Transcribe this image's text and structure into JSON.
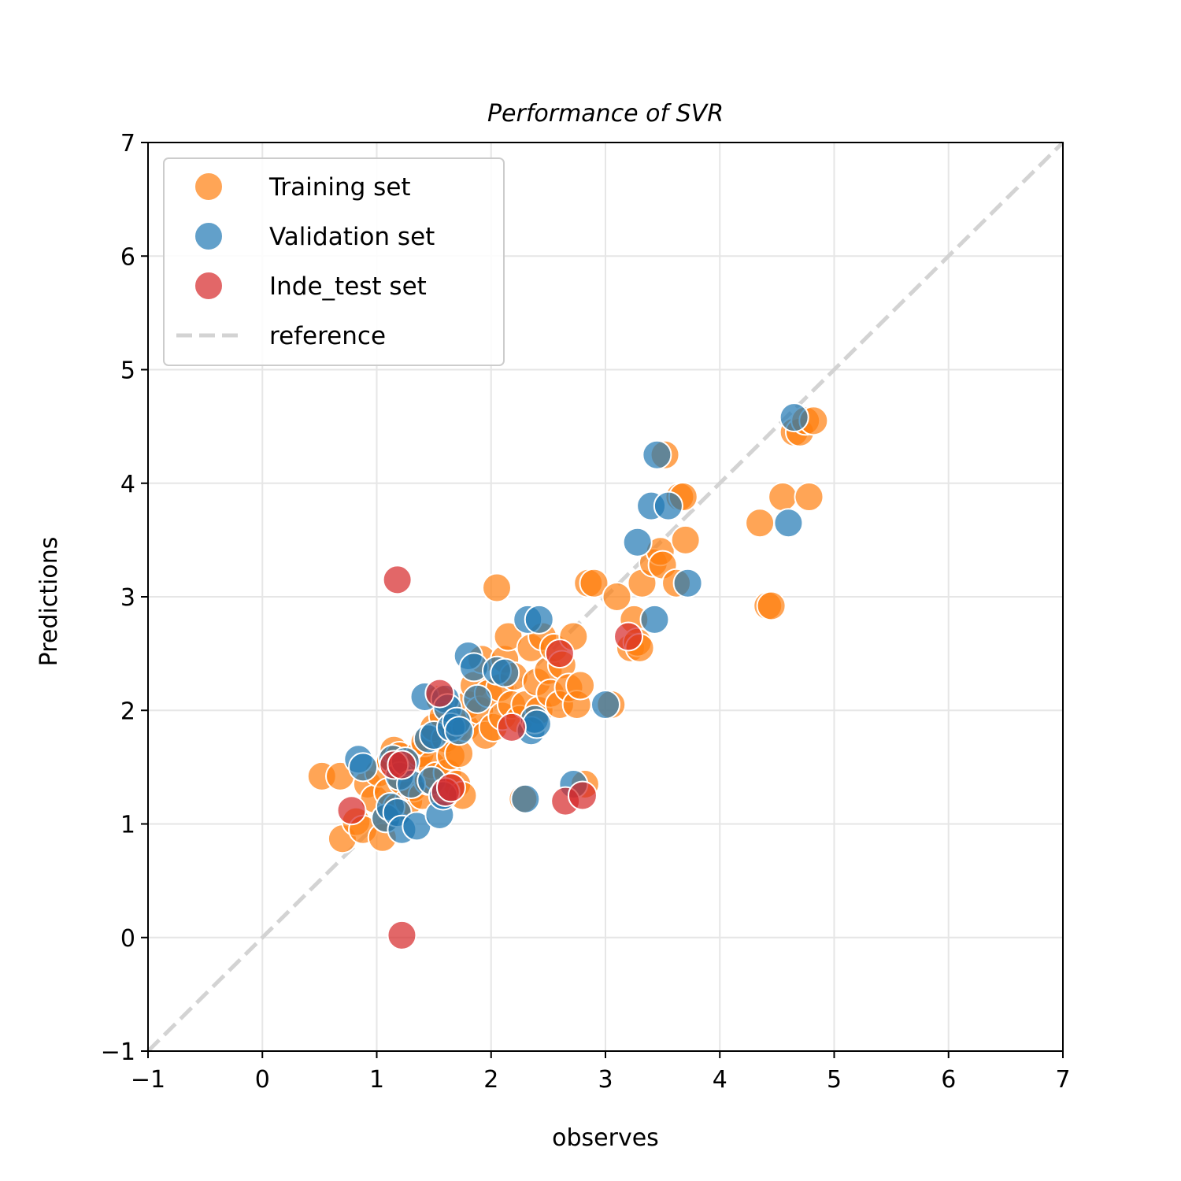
{
  "chart_data": {
    "type": "scatter",
    "title": "Performance of SVR",
    "xlabel": "observes",
    "ylabel": "Predictions",
    "xlim": [
      -1,
      7
    ],
    "ylim": [
      -1,
      7
    ],
    "xticks": [
      -1,
      0,
      1,
      2,
      3,
      4,
      5,
      6,
      7
    ],
    "yticks": [
      -1,
      0,
      1,
      2,
      3,
      4,
      5,
      6,
      7
    ],
    "xtick_labels": [
      "−1",
      "0",
      "1",
      "2",
      "3",
      "4",
      "5",
      "6",
      "7"
    ],
    "ytick_labels": [
      "−1",
      "0",
      "1",
      "2",
      "3",
      "4",
      "5",
      "6",
      "7"
    ],
    "grid": true,
    "legend_position": "top-left",
    "series": [
      {
        "name": "Training set",
        "color": "#ff7f0e",
        "points": [
          [
            0.52,
            1.42
          ],
          [
            0.68,
            1.42
          ],
          [
            0.7,
            0.87
          ],
          [
            0.82,
            1.02
          ],
          [
            0.88,
            0.95
          ],
          [
            0.92,
            1.35
          ],
          [
            0.98,
            1.22
          ],
          [
            1.02,
            1.45
          ],
          [
            1.05,
            0.88
          ],
          [
            1.08,
            1.05
          ],
          [
            1.1,
            1.28
          ],
          [
            1.12,
            1.55
          ],
          [
            1.15,
            1.65
          ],
          [
            1.18,
            1.15
          ],
          [
            1.2,
            1.6
          ],
          [
            1.22,
            1.38
          ],
          [
            1.25,
            1.5
          ],
          [
            1.28,
            1.2
          ],
          [
            1.32,
            1.32
          ],
          [
            1.35,
            1.55
          ],
          [
            1.38,
            1.62
          ],
          [
            1.4,
            1.25
          ],
          [
            1.42,
            1.72
          ],
          [
            1.45,
            1.38
          ],
          [
            1.48,
            1.52
          ],
          [
            1.5,
            1.85
          ],
          [
            1.52,
            1.42
          ],
          [
            1.55,
            2.1
          ],
          [
            1.58,
            1.95
          ],
          [
            1.6,
            1.75
          ],
          [
            1.62,
            1.45
          ],
          [
            1.65,
            1.6
          ],
          [
            1.7,
            1.35
          ],
          [
            1.72,
            1.62
          ],
          [
            1.75,
            1.25
          ],
          [
            1.78,
            1.85
          ],
          [
            1.8,
            2.05
          ],
          [
            1.85,
            2.22
          ],
          [
            1.9,
            2.0
          ],
          [
            1.92,
            2.45
          ],
          [
            1.95,
            1.78
          ],
          [
            1.98,
            2.15
          ],
          [
            2.02,
            1.85
          ],
          [
            2.05,
            3.08
          ],
          [
            2.08,
            2.2
          ],
          [
            2.1,
            1.95
          ],
          [
            2.12,
            2.45
          ],
          [
            2.15,
            2.65
          ],
          [
            2.18,
            2.05
          ],
          [
            2.2,
            2.3
          ],
          [
            2.25,
            1.92
          ],
          [
            2.28,
            1.22
          ],
          [
            2.3,
            2.05
          ],
          [
            2.35,
            2.55
          ],
          [
            2.4,
            2.25
          ],
          [
            2.42,
            2.0
          ],
          [
            2.45,
            2.65
          ],
          [
            2.5,
            2.35
          ],
          [
            2.52,
            2.15
          ],
          [
            2.55,
            2.55
          ],
          [
            2.6,
            2.05
          ],
          [
            2.62,
            2.4
          ],
          [
            2.68,
            2.2
          ],
          [
            2.72,
            2.65
          ],
          [
            2.75,
            2.05
          ],
          [
            2.78,
            2.22
          ],
          [
            2.82,
            1.35
          ],
          [
            2.85,
            3.12
          ],
          [
            2.9,
            3.12
          ],
          [
            3.05,
            2.05
          ],
          [
            3.1,
            3.0
          ],
          [
            3.22,
            2.55
          ],
          [
            3.25,
            2.8
          ],
          [
            3.28,
            2.6
          ],
          [
            3.3,
            2.55
          ],
          [
            3.32,
            3.12
          ],
          [
            3.42,
            3.3
          ],
          [
            3.48,
            3.4
          ],
          [
            3.5,
            3.28
          ],
          [
            3.52,
            4.25
          ],
          [
            3.62,
            3.12
          ],
          [
            3.65,
            3.88
          ],
          [
            3.68,
            3.88
          ],
          [
            3.7,
            3.5
          ],
          [
            4.35,
            3.65
          ],
          [
            4.42,
            2.92
          ],
          [
            4.45,
            2.92
          ],
          [
            4.55,
            3.88
          ],
          [
            4.65,
            4.45
          ],
          [
            4.7,
            4.45
          ],
          [
            4.75,
            4.55
          ],
          [
            4.78,
            3.88
          ],
          [
            4.82,
            4.55
          ]
        ]
      },
      {
        "name": "Validation set",
        "color": "#1f77b4",
        "points": [
          [
            0.84,
            1.57
          ],
          [
            0.88,
            1.5
          ],
          [
            1.08,
            1.05
          ],
          [
            1.12,
            1.15
          ],
          [
            1.14,
            1.57
          ],
          [
            1.18,
            1.1
          ],
          [
            1.2,
            1.42
          ],
          [
            1.22,
            0.95
          ],
          [
            1.25,
            1.55
          ],
          [
            1.3,
            1.35
          ],
          [
            1.35,
            0.98
          ],
          [
            1.42,
            2.12
          ],
          [
            1.45,
            1.75
          ],
          [
            1.48,
            1.38
          ],
          [
            1.5,
            1.78
          ],
          [
            1.55,
            1.08
          ],
          [
            1.58,
            1.25
          ],
          [
            1.6,
            2.1
          ],
          [
            1.62,
            2.02
          ],
          [
            1.65,
            1.85
          ],
          [
            1.7,
            1.9
          ],
          [
            1.72,
            1.82
          ],
          [
            1.8,
            2.48
          ],
          [
            1.85,
            2.38
          ],
          [
            1.88,
            2.1
          ],
          [
            2.05,
            2.35
          ],
          [
            2.12,
            2.33
          ],
          [
            2.3,
            1.22
          ],
          [
            2.32,
            2.8
          ],
          [
            2.35,
            1.82
          ],
          [
            2.38,
            1.92
          ],
          [
            2.4,
            1.88
          ],
          [
            2.42,
            2.8
          ],
          [
            2.72,
            1.35
          ],
          [
            3.0,
            2.05
          ],
          [
            3.28,
            3.48
          ],
          [
            3.4,
            3.8
          ],
          [
            3.43,
            2.8
          ],
          [
            3.45,
            4.25
          ],
          [
            3.55,
            3.8
          ],
          [
            3.72,
            3.12
          ],
          [
            4.6,
            3.65
          ],
          [
            4.65,
            4.58
          ]
        ]
      },
      {
        "name": "Inde_test set",
        "color": "#d62728",
        "points": [
          [
            0.78,
            1.12
          ],
          [
            1.15,
            1.52
          ],
          [
            1.18,
            3.15
          ],
          [
            1.22,
            0.02
          ],
          [
            1.22,
            1.52
          ],
          [
            1.55,
            2.15
          ],
          [
            1.6,
            1.28
          ],
          [
            1.65,
            1.32
          ],
          [
            2.18,
            1.85
          ],
          [
            2.6,
            2.5
          ],
          [
            2.65,
            1.2
          ],
          [
            2.8,
            1.25
          ],
          [
            3.2,
            2.65
          ]
        ]
      }
    ],
    "reference": {
      "name": "reference",
      "color": "#d3d3d3",
      "x": [
        -1,
        7
      ],
      "y": [
        -1,
        7
      ]
    }
  }
}
